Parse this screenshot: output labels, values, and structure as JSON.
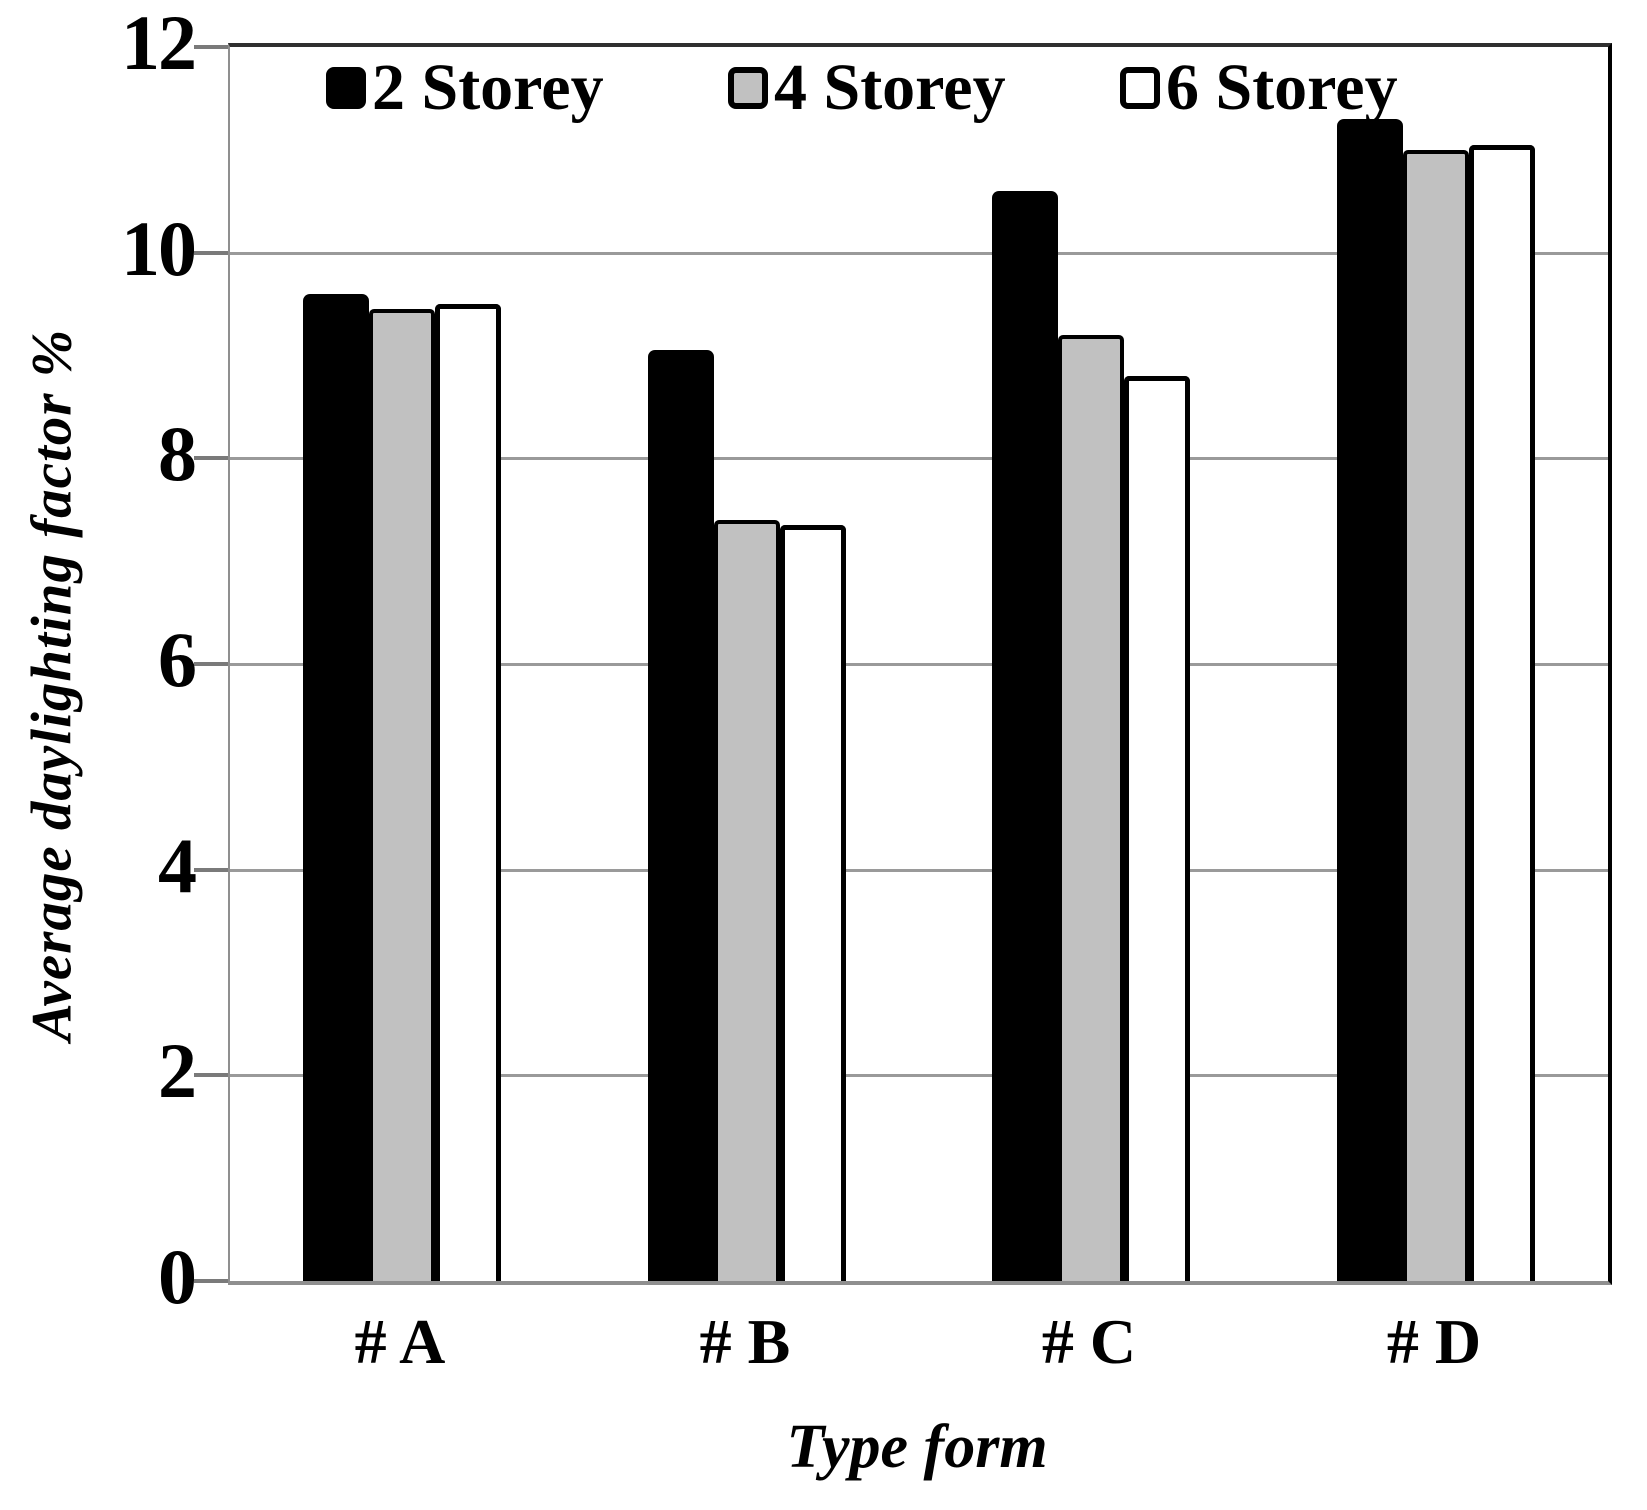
{
  "chart_data": {
    "type": "bar",
    "title": "",
    "categories": [
      "# A",
      "# B",
      "# C",
      "# D"
    ],
    "series": [
      {
        "name": "2 Storey",
        "fill": "#000000",
        "border": "#000000",
        "values": [
          9.6,
          9.05,
          10.6,
          11.3
        ]
      },
      {
        "name": "4 Storey",
        "fill": "#c1c1c1",
        "border": "#000000",
        "values": [
          9.45,
          7.4,
          9.2,
          11.0
        ]
      },
      {
        "name": "6 Storey",
        "fill": "#ffffff",
        "border": "#000000",
        "values": [
          9.5,
          7.35,
          8.8,
          11.05
        ]
      }
    ],
    "xlabel": "Type form",
    "ylabel": "Average daylighting factor %",
    "ylim": [
      0,
      12
    ],
    "yticks": [
      0,
      2,
      4,
      6,
      8,
      10,
      12
    ],
    "grid": true,
    "legend_position": "top-inside",
    "colors": {
      "gridline": "#9a9a9a",
      "axis": "#8f8f8f",
      "tick": "#7a7a7a",
      "text": "#000000"
    }
  }
}
